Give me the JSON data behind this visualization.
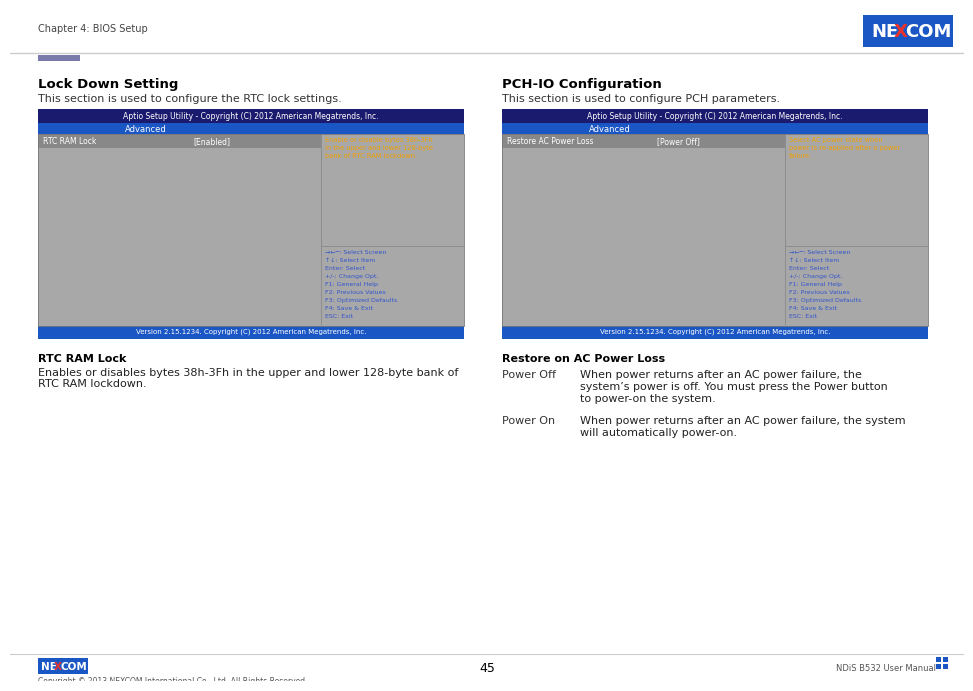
{
  "page_bg": "#ffffff",
  "header_text": "Chapter 4: BIOS Setup",
  "header_line_color": "#cccccc",
  "header_bar_color": "#7b7bab",
  "nexcom_bg": "#1a56c4",
  "nexcom_x_color": "#e8322a",
  "left_title": "Lock Down Setting",
  "left_subtitle": "This section is used to configure the RTC lock settings.",
  "right_title": "PCH-IO Configuration",
  "right_subtitle": "This section is used to configure PCH parameters.",
  "bios_header_bg": "#1a1a6e",
  "bios_header_text": "Aptio Setup Utility - Copyright (C) 2012 American Megatrends, Inc.",
  "bios_tab_bg": "#1a56c4",
  "bios_tab_text": "Advanced",
  "bios_body_bg": "#a8a8a8",
  "bios_footer_bg": "#1a56c4",
  "bios_footer_text": "Version 2.15.1234. Copyright (C) 2012 American Megatrends, Inc.",
  "bios_help_color": "#f0a000",
  "bios_nav_color": "#3355cc",
  "bios_divider_color": "#888888",
  "left_bios_item": "RTC RAM Lock",
  "left_bios_value": "[Enabled]",
  "left_bios_help_lines": [
    "Enable or disable bytes 38h-3Fh",
    "in the upper and lower 128-byte",
    "bank of RTC RAM lockdown."
  ],
  "bios_nav_lines": [
    "→←─: Select Screen",
    "↑↓: Select Item",
    "Enter: Select",
    "+/-: Change Opt.",
    "F1: General Help",
    "F2: Previous Values",
    "F3: Optimized Defaults",
    "F4: Save & Exit",
    "ESC: Exit"
  ],
  "right_bios_item": "Restore AC Power Loss",
  "right_bios_value": "[Power Off]",
  "right_bios_help_lines": [
    "Select AC power state when",
    "power is re-applied after a power",
    "failure."
  ],
  "left_section_title": "RTC RAM Lock",
  "left_section_line1": "Enables or disables bytes 38h-3Fh in the upper and lower 128-byte bank of",
  "left_section_line2": "RTC RAM lockdown.",
  "right_section_title": "Restore on AC Power Loss",
  "power_off_label": "Power Off",
  "power_off_line1": "When power returns after an AC power failure, the",
  "power_off_line2": "system’s power is off. You must press the Power button",
  "power_off_line3": "to power-on the system.",
  "power_on_label": "Power On",
  "power_on_line1": "When power returns after an AC power failure, the system",
  "power_on_line2": "will automatically power-on.",
  "footer_left": "Copyright © 2013 NEXCOM International Co., Ltd. All Rights Reserved.",
  "footer_center": "45",
  "footer_right": "NDiS B532 User Manual",
  "footer_line_color": "#cccccc",
  "footer_nexcom_bg": "#1a56c4"
}
